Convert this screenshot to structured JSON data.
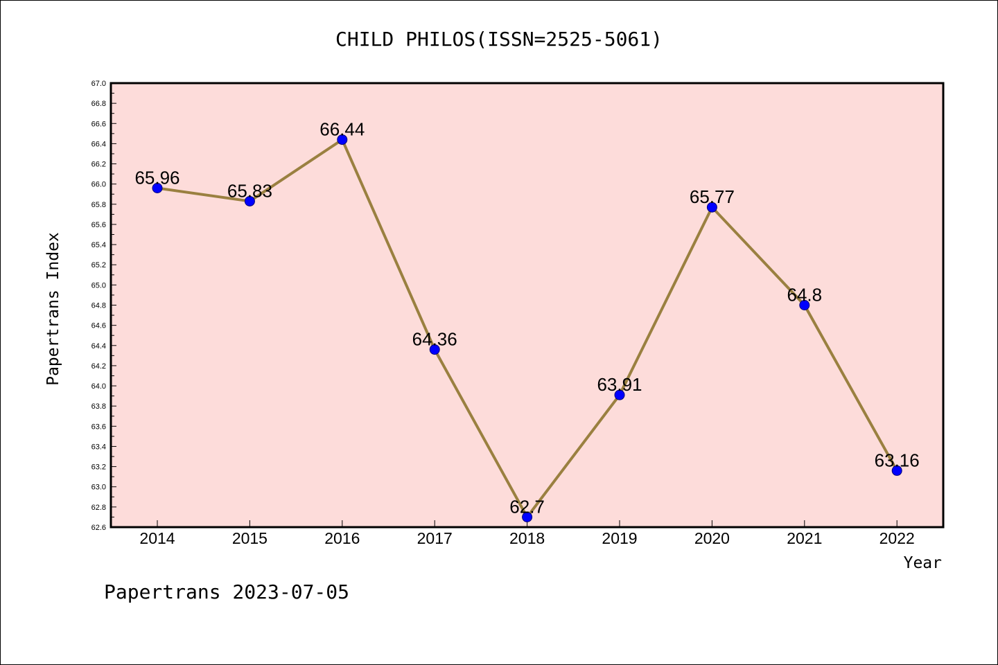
{
  "chart_data": {
    "type": "line",
    "title": "CHILD PHILOS(ISSN=2525-5061)",
    "xlabel": "Year",
    "ylabel": "Papertrans Index",
    "categories": [
      "2014",
      "2015",
      "2016",
      "2017",
      "2018",
      "2019",
      "2020",
      "2021",
      "2022"
    ],
    "values": [
      65.96,
      65.83,
      66.44,
      64.36,
      62.7,
      63.91,
      65.77,
      64.8,
      63.16
    ],
    "data_labels": [
      "65.96",
      "65.83",
      "66.44",
      "64.36",
      "62.7",
      "63.91",
      "65.77",
      "64.8",
      "63.16"
    ],
    "ylim": [
      62.6,
      67.0
    ],
    "yticks": [
      "62.6",
      "62.8",
      "63.0",
      "63.2",
      "63.4",
      "63.6",
      "63.8",
      "64.0",
      "64.2",
      "64.4",
      "64.6",
      "64.8",
      "65.0",
      "65.2",
      "65.4",
      "65.6",
      "65.8",
      "66.0",
      "66.2",
      "66.4",
      "66.6",
      "66.8",
      "67.0"
    ],
    "grid": false,
    "legend": "none",
    "colors": {
      "plot_background": "#fddcda",
      "line": "#9a8040",
      "marker": "#0000ff"
    }
  },
  "footer": "Papertrans 2023-07-05"
}
